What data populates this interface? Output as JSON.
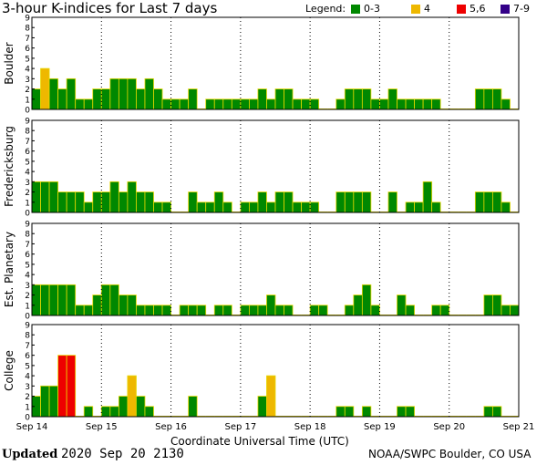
{
  "title": "3-hour K-indices for Last 7 days",
  "legend": {
    "label": "Legend:",
    "items": [
      {
        "label": "0-3",
        "color": "#008800"
      },
      {
        "label": "4",
        "color": "#eeb800"
      },
      {
        "label": "5,6",
        "color": "#ee0000"
      },
      {
        "label": "7-9",
        "color": "#330088"
      }
    ]
  },
  "xlabel": "Coordinate Universal Time (UTC)",
  "footer": {
    "updated_label": "Updated",
    "updated_time": "2020 Sep 20 2130",
    "credit": "NOAA/SWPC Boulder, CO USA"
  },
  "chart_data": [
    {
      "type": "bar",
      "name": "Boulder",
      "ylabel": "Boulder",
      "ylim": [
        0,
        9
      ],
      "yticks": [
        0,
        1,
        2,
        3,
        4,
        5,
        6,
        7,
        8,
        9
      ],
      "xticks": [
        "Sep 14",
        "Sep 15",
        "Sep 16",
        "Sep 17",
        "Sep 18",
        "Sep 19",
        "Sep 20",
        "Sep 21"
      ],
      "values": [
        2,
        4,
        3,
        2,
        3,
        1,
        1,
        2,
        2,
        3,
        3,
        3,
        2,
        3,
        2,
        1,
        1,
        1,
        2,
        0,
        1,
        1,
        1,
        1,
        1,
        1,
        2,
        1,
        2,
        2,
        1,
        1,
        1,
        0,
        0,
        1,
        2,
        2,
        2,
        1,
        1,
        2,
        1,
        1,
        1,
        1,
        1,
        0,
        0,
        0,
        0,
        2,
        2,
        2,
        1,
        0
      ]
    },
    {
      "type": "bar",
      "name": "Fredericksburg",
      "ylabel": "Fredericksburg",
      "ylim": [
        0,
        9
      ],
      "yticks": [
        0,
        1,
        2,
        3,
        4,
        5,
        6,
        7,
        8,
        9
      ],
      "xticks": [
        "Sep 14",
        "Sep 15",
        "Sep 16",
        "Sep 17",
        "Sep 18",
        "Sep 19",
        "Sep 20",
        "Sep 21"
      ],
      "values": [
        3,
        3,
        3,
        2,
        2,
        2,
        1,
        2,
        2,
        3,
        2,
        3,
        2,
        2,
        1,
        1,
        0,
        0,
        2,
        1,
        1,
        2,
        1,
        0,
        1,
        1,
        2,
        1,
        2,
        2,
        1,
        1,
        1,
        0,
        0,
        2,
        2,
        2,
        2,
        0,
        0,
        2,
        0,
        1,
        1,
        3,
        1,
        0,
        0,
        0,
        0,
        2,
        2,
        2,
        1,
        0
      ]
    },
    {
      "type": "bar",
      "name": "Est. Planetary",
      "ylabel": "Est. Planetary",
      "ylim": [
        0,
        9
      ],
      "yticks": [
        0,
        1,
        2,
        3,
        4,
        5,
        6,
        7,
        8,
        9
      ],
      "xticks": [
        "Sep 14",
        "Sep 15",
        "Sep 16",
        "Sep 17",
        "Sep 18",
        "Sep 19",
        "Sep 20",
        "Sep 21"
      ],
      "values": [
        3,
        3,
        3,
        3,
        3,
        1,
        1,
        2,
        3,
        3,
        2,
        2,
        1,
        1,
        1,
        1,
        0,
        1,
        1,
        1,
        0,
        1,
        1,
        0,
        1,
        1,
        1,
        2,
        1,
        1,
        0,
        0,
        1,
        1,
        0,
        0,
        1,
        2,
        3,
        1,
        0,
        0,
        2,
        1,
        0,
        0,
        1,
        1,
        0,
        0,
        0,
        0,
        2,
        2,
        1,
        1
      ]
    },
    {
      "type": "bar",
      "name": "College",
      "ylabel": "College",
      "ylim": [
        0,
        9
      ],
      "yticks": [
        0,
        1,
        2,
        3,
        4,
        5,
        6,
        7,
        8,
        9
      ],
      "xticks": [
        "Sep 14",
        "Sep 15",
        "Sep 16",
        "Sep 17",
        "Sep 18",
        "Sep 19",
        "Sep 20",
        "Sep 21"
      ],
      "values": [
        2,
        3,
        3,
        6,
        6,
        0,
        1,
        0,
        1,
        1,
        2,
        4,
        2,
        1,
        0,
        0,
        0,
        0,
        2,
        0,
        0,
        0,
        0,
        0,
        0,
        0,
        2,
        4,
        0,
        0,
        0,
        0,
        0,
        0,
        0,
        1,
        1,
        0,
        1,
        0,
        0,
        0,
        1,
        1,
        0,
        0,
        0,
        0,
        0,
        0,
        0,
        0,
        1,
        1,
        0,
        0
      ]
    }
  ]
}
